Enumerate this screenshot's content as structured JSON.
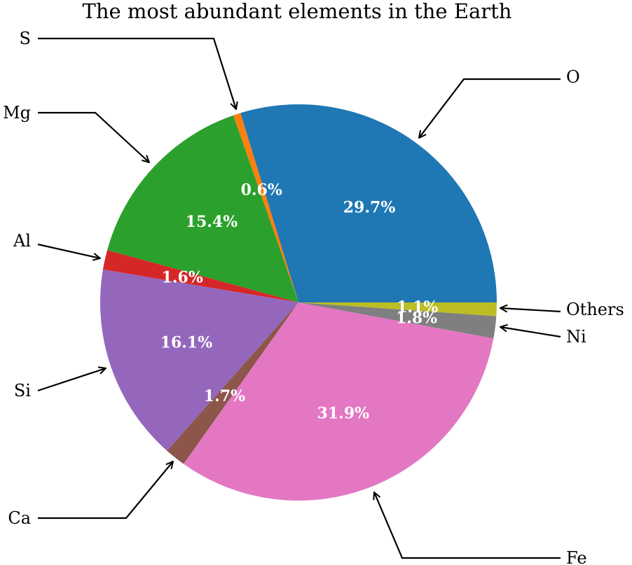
{
  "chart_data": {
    "type": "pie",
    "title": "The most abundant elements in the Earth",
    "start_angle_deg": 0,
    "direction": "counterclockwise",
    "slices": [
      {
        "label": "O",
        "value": 29.7,
        "value_label": "29.7%",
        "color": "#1f77b4"
      },
      {
        "label": "S",
        "value": 0.6,
        "value_label": "0.6%",
        "color": "#ff7f0e"
      },
      {
        "label": "Mg",
        "value": 15.4,
        "value_label": "15.4%",
        "color": "#2ca02c"
      },
      {
        "label": "Al",
        "value": 1.6,
        "value_label": "1.6%",
        "color": "#d62728"
      },
      {
        "label": "Si",
        "value": 16.1,
        "value_label": "16.1%",
        "color": "#9467bd"
      },
      {
        "label": "Ca",
        "value": 1.7,
        "value_label": "1.7%",
        "color": "#8c564b"
      },
      {
        "label": "Fe",
        "value": 31.9,
        "value_label": "31.9%",
        "color": "#e377c2"
      },
      {
        "label": "Ni",
        "value": 1.8,
        "value_label": "1.8%",
        "color": "#7f7f7f"
      },
      {
        "label": "Others",
        "value": 1.1,
        "value_label": "1.1%",
        "color": "#bcbd22"
      }
    ]
  }
}
